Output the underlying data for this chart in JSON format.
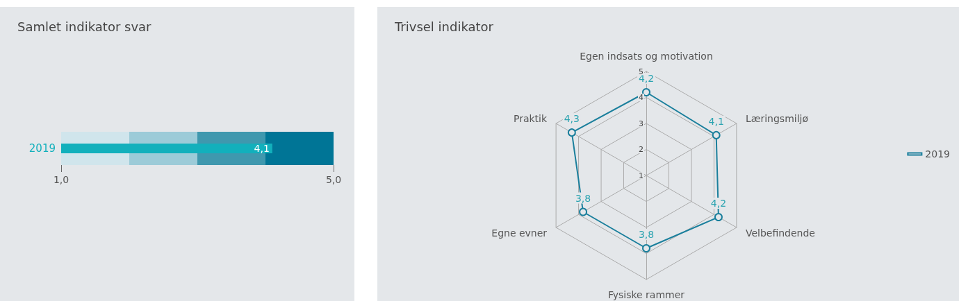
{
  "chart_data": [
    {
      "type": "bar",
      "title": "Samlet indikator svar",
      "orientation": "horizontal",
      "categories": [
        "2019"
      ],
      "values": [
        4.1
      ],
      "color": "#12b0bc",
      "value_labels": [
        "4,1"
      ],
      "xlim": [
        1,
        5
      ],
      "xticks": [
        {
          "value": 1,
          "label": "1,0"
        },
        {
          "value": 5,
          "label": "5,0"
        }
      ],
      "bands": [
        {
          "axis": "x",
          "from": 1,
          "to": 2,
          "color": "#d0e5ec"
        },
        {
          "axis": "x",
          "from": 2,
          "to": 3,
          "color": "#9ccbd8"
        },
        {
          "axis": "x",
          "from": 3,
          "to": 4,
          "color": "#3f98ae"
        },
        {
          "axis": "x",
          "from": 4,
          "to": 5,
          "color": "#007596"
        }
      ],
      "grid": false,
      "legend": false
    },
    {
      "type": "radar",
      "title": "Trivsel indikator",
      "categories": [
        "Egen indsats og motivation",
        "Læringsmiljø",
        "Velbefindende",
        "Fysiske rammer",
        "Egne evner",
        "Praktik"
      ],
      "series": [
        {
          "name": "2019",
          "color": "#1a7f9c",
          "values": [
            4.2,
            4.1,
            4.2,
            3.8,
            3.8,
            4.3
          ],
          "value_labels": [
            "4,2",
            "4,1",
            "4,2",
            "3,8",
            "3,8",
            "4,3"
          ]
        }
      ],
      "ylim": [
        1,
        5
      ],
      "yticks": [
        1,
        2,
        3,
        4,
        5
      ],
      "grid": true,
      "legend": "right",
      "marker": "circle"
    }
  ]
}
